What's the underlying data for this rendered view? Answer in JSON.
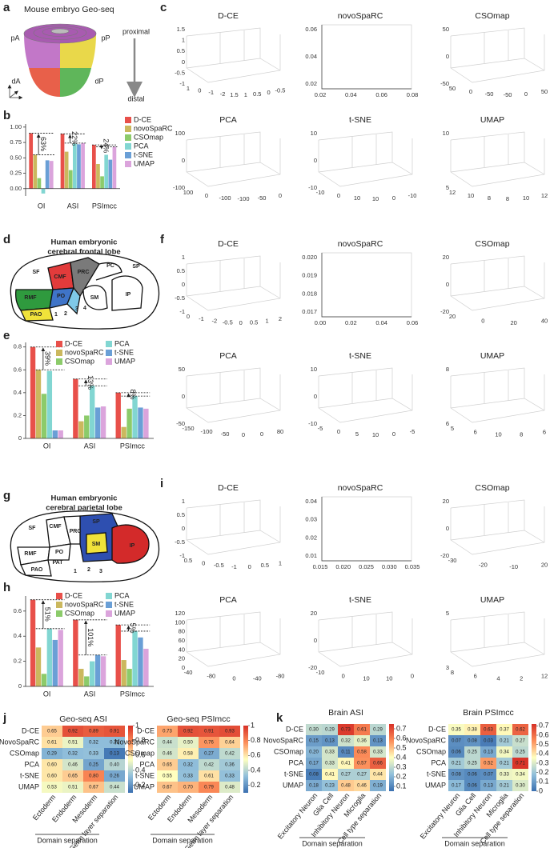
{
  "figure": {
    "panel_labels": [
      "a",
      "b",
      "c",
      "d",
      "e",
      "f",
      "g",
      "h",
      "i",
      "j",
      "k"
    ],
    "a": {
      "title": "Mouse embryo Geo-seq",
      "regions": [
        "pA",
        "pP",
        "dA",
        "dP"
      ],
      "proximal": "proximal",
      "distal": "distal"
    },
    "d": {
      "title_lines": [
        "Human embryonic",
        "cerebral frontal lobe"
      ],
      "regions": [
        "SF",
        "CMF",
        "PRC",
        "PC",
        "SP",
        "SM",
        "IP",
        "RMF",
        "PO",
        "PAO"
      ],
      "markers": [
        "1",
        "2",
        "3",
        "4"
      ]
    },
    "g": {
      "title_lines": [
        "Human embryonic",
        "cerebral parietal lobe"
      ],
      "regions": [
        "SF",
        "CMF",
        "SP",
        "RMF",
        "PRC",
        "PO",
        "PAT",
        "SM",
        "IP",
        "PAO"
      ],
      "markers": [
        "1",
        "2",
        "3"
      ]
    }
  },
  "chart_data": [
    {
      "type": "bar",
      "categories": [
        "OI",
        "ASI",
        "PSImcc"
      ],
      "ylim": [
        -0.12,
        1.05
      ],
      "yticks": [
        {
          "value": 0,
          "label": "0.00"
        },
        {
          "value": 0.25,
          "label": "0.25"
        },
        {
          "value": 0.5,
          "label": "0.50"
        },
        {
          "value": 0.75,
          "label": "0.75"
        },
        {
          "value": 1,
          "label": "1.00"
        }
      ],
      "series": [
        {
          "name": "D-CE",
          "color": "#e8504a",
          "values": [
            0.9,
            0.89,
            0.71
          ]
        },
        {
          "name": "novoSpaRC",
          "color": "#cbb85e",
          "values": [
            0.55,
            0.6,
            0.4
          ]
        },
        {
          "name": "CSOmap",
          "color": "#8ccb6a",
          "values": [
            0.17,
            0.3,
            0.2
          ]
        },
        {
          "name": "PCA",
          "color": "#82d6d2",
          "values": [
            -0.08,
            0.73,
            0.55
          ]
        },
        {
          "name": "t-SNE",
          "color": "#6a9fd6",
          "values": [
            0.46,
            0.72,
            0.47
          ]
        },
        {
          "name": "UMAP",
          "color": "#dba4dc",
          "values": [
            0.45,
            0.74,
            0.68
          ]
        }
      ],
      "annotations": [
        "63%",
        "22%",
        "24%"
      ],
      "legend": "right"
    },
    {
      "type": "bar",
      "categories": [
        "OI",
        "ASI",
        "PSImcc"
      ],
      "ylim": [
        0,
        0.84
      ],
      "yticks": [
        0,
        0.2,
        0.4,
        0.6,
        0.8
      ],
      "series": [
        {
          "name": "D-CE",
          "color": "#e8504a",
          "values": [
            0.8,
            0.52,
            0.4
          ]
        },
        {
          "name": "novoSpaRC",
          "color": "#cbb85e",
          "values": [
            0.6,
            0.15,
            0.1
          ]
        },
        {
          "name": "CSOmap",
          "color": "#8ccb6a",
          "values": [
            0.39,
            0.2,
            0.26
          ]
        },
        {
          "name": "PCA",
          "color": "#82d6d2",
          "values": [
            0.59,
            0.46,
            0.37
          ]
        },
        {
          "name": "t-SNE",
          "color": "#6a9fd6",
          "values": [
            0.07,
            0.27,
            0.27
          ]
        },
        {
          "name": "UMAP",
          "color": "#dba4dc",
          "values": [
            0.07,
            0.28,
            0.26
          ]
        }
      ],
      "annotations": [
        "39%",
        "13%",
        "8%"
      ],
      "legend": "top"
    },
    {
      "type": "bar",
      "categories": [
        "OI",
        "ASI",
        "PSImcc"
      ],
      "ylim": [
        0,
        0.72
      ],
      "yticks": [
        0,
        0.2,
        0.4,
        0.6
      ],
      "series": [
        {
          "name": "D-CE",
          "color": "#e8504a",
          "values": [
            0.69,
            0.53,
            0.49
          ]
        },
        {
          "name": "novoSpaRC",
          "color": "#cbb85e",
          "values": [
            0.31,
            0.14,
            0.21
          ]
        },
        {
          "name": "CSOmap",
          "color": "#8ccb6a",
          "values": [
            0.1,
            0.08,
            0.14
          ]
        },
        {
          "name": "PCA",
          "color": "#82d6d2",
          "values": [
            0.46,
            0.2,
            0.44
          ]
        },
        {
          "name": "t-SNE",
          "color": "#6a9fd6",
          "values": [
            0.37,
            0.25,
            0.39
          ]
        },
        {
          "name": "UMAP",
          "color": "#dba4dc",
          "values": [
            0.45,
            0.24,
            0.3
          ]
        }
      ],
      "annotations": [
        "51%",
        "101%",
        "5%"
      ],
      "legend": "top"
    },
    {
      "type": "scatter3d",
      "title": "D-CE",
      "left_ticks": [
        "1.5",
        "1",
        "0.5",
        "0",
        "-0.5",
        "-1"
      ],
      "bottom_ticks": [
        "1",
        "0",
        "-1",
        "-2",
        "1.5",
        "1",
        "0.5",
        "0",
        "-0.5"
      ]
    },
    {
      "type": "scatter2d",
      "title": "novoSpaRC",
      "left_ticks": [
        "0.06",
        "0.04",
        "0.02"
      ],
      "bottom_ticks": [
        "0.02",
        "0.04",
        "0.06",
        "0.08"
      ]
    },
    {
      "type": "scatter3d",
      "title": "CSOmap",
      "left_ticks": [
        "50",
        "0",
        "-50"
      ],
      "bottom_ticks": [
        "50",
        "0",
        "-50",
        "-50",
        "0",
        "50"
      ]
    },
    {
      "type": "scatter3d",
      "title": "PCA",
      "left_ticks": [
        "100",
        "0",
        "-100"
      ],
      "bottom_ticks": [
        "100",
        "0",
        "-100",
        "-100",
        "-50",
        "0"
      ]
    },
    {
      "type": "scatter3d",
      "title": "t-SNE",
      "left_ticks": [
        "10",
        "0",
        "-10"
      ],
      "bottom_ticks": [
        "-10",
        "0",
        "10",
        "10",
        "0",
        "-10"
      ]
    },
    {
      "type": "scatter3d",
      "title": "UMAP",
      "left_ticks": [
        "10",
        "5"
      ],
      "bottom_ticks": [
        "12",
        "10",
        "8",
        "8",
        "10",
        "12"
      ]
    },
    {
      "type": "scatter3d",
      "title": "D-CE",
      "left_ticks": [
        "1",
        "0.5",
        "0",
        "-0.5",
        "-1"
      ],
      "bottom_ticks": [
        "0",
        "-1",
        "-2",
        "-0.5",
        "0",
        "0.5",
        "1",
        "2"
      ]
    },
    {
      "type": "scatter2d",
      "title": "novoSpaRC",
      "left_ticks": [
        "0.020",
        "0.019",
        "0.018",
        "0.017"
      ],
      "bottom_ticks": [
        "0.00",
        "0.02",
        "0.04",
        "0.06"
      ]
    },
    {
      "type": "scatter3d",
      "title": "CSOmap",
      "left_ticks": [
        "20",
        "0",
        "-20"
      ],
      "bottom_ticks": [
        "20",
        "0",
        "20",
        "40"
      ]
    },
    {
      "type": "scatter3d",
      "title": "PCA",
      "left_ticks": [
        "50",
        "0",
        "-50"
      ],
      "bottom_ticks": [
        "-150",
        "-100",
        "-50",
        "0",
        "0",
        "80"
      ]
    },
    {
      "type": "scatter3d",
      "title": "t-SNE",
      "left_ticks": [
        "10",
        "0",
        "-10"
      ],
      "bottom_ticks": [
        "-5",
        "0",
        "5",
        "10",
        "0",
        "-5"
      ]
    },
    {
      "type": "scatter3d",
      "title": "UMAP",
      "left_ticks": [
        "8",
        "6"
      ],
      "bottom_ticks": [
        "5",
        "6",
        "10",
        "8",
        "6"
      ]
    },
    {
      "type": "scatter3d",
      "title": "D-CE",
      "left_ticks": [
        "1",
        "0.5",
        "0",
        "-0.5",
        "-1"
      ],
      "bottom_ticks": [
        "0.5",
        "0",
        "-0.5",
        "-1",
        "0",
        "0.5",
        "1"
      ]
    },
    {
      "type": "scatter2d",
      "title": "novoSpaRC",
      "left_ticks": [
        "0.04",
        "0.03",
        "0.02",
        "0.01"
      ],
      "bottom_ticks": [
        "0.015",
        "0.020",
        "0.025",
        "0.030",
        "0.035"
      ]
    },
    {
      "type": "scatter3d",
      "title": "CSOmap",
      "left_ticks": [
        "20",
        "0",
        "-20"
      ],
      "bottom_ticks": [
        "-30",
        "-20",
        "-10",
        "20"
      ]
    },
    {
      "type": "scatter3d",
      "title": "PCA",
      "left_ticks": [
        "120",
        "100",
        "80",
        "60",
        "40",
        "20",
        "0"
      ],
      "bottom_ticks": [
        "-40",
        "-80",
        "0",
        "-40",
        "-80"
      ]
    },
    {
      "type": "scatter3d",
      "title": "t-SNE",
      "left_ticks": [
        "20",
        "0",
        "-20"
      ],
      "bottom_ticks": [
        "-10",
        "0",
        "10",
        "10",
        "0"
      ]
    },
    {
      "type": "scatter3d",
      "title": "UMAP",
      "left_ticks": [
        "5",
        "3"
      ],
      "bottom_ticks": [
        "8",
        "6",
        "4",
        "2",
        "12"
      ]
    },
    {
      "type": "heatmap",
      "title": "Geo-seq ASI",
      "rows": [
        "D-CE",
        "NovoSpaRC",
        "CSOmap",
        "PCA",
        "t-SNE",
        "UMAP"
      ],
      "columns": [
        "Ectoderm",
        "Endoderm",
        "Mesoderm",
        "Germ layer separation"
      ],
      "values": [
        [
          0.65,
          0.92,
          0.89,
          0.91
        ],
        [
          0.61,
          0.51,
          0.32,
          0.32
        ],
        [
          0.29,
          0.32,
          0.33,
          0.13
        ],
        [
          0.6,
          0.46,
          0.25,
          0.4
        ],
        [
          0.6,
          0.65,
          0.8,
          0.26
        ],
        [
          0.53,
          0.51,
          0.67,
          0.44
        ]
      ],
      "value_labels": [
        [
          "0.65",
          "0.92",
          "0.89",
          "0.91"
        ],
        [
          "0.61",
          "0.51",
          "0.32",
          "0.32"
        ],
        [
          "0.29",
          "0.32",
          "0.33",
          "0.13"
        ],
        [
          "0.60",
          "0.46",
          "0.25",
          "0.40"
        ],
        [
          "0.60",
          "0.65",
          "0.80",
          "0.26"
        ],
        [
          "0.53",
          "0.51",
          "0.67",
          "0.44"
        ]
      ],
      "clim": [
        0.1,
        1
      ],
      "cticks": [
        1,
        0.8,
        0.6,
        0.4,
        0.2
      ],
      "xlabel": "Domain separation"
    },
    {
      "type": "heatmap",
      "title": "Geo-seq PSImcc",
      "rows": [
        "D-CE",
        "NovoSpaRC",
        "CSOmap",
        "PCA",
        "t-SNE",
        "UMAP"
      ],
      "columns": [
        "Ectoderm",
        "Endoderm",
        "Mesoderm",
        "Germ layer separation"
      ],
      "values": [
        [
          0.73,
          0.92,
          0.91,
          0.93
        ],
        [
          0.44,
          0.5,
          0.76,
          0.64
        ],
        [
          0.46,
          0.58,
          0.27,
          0.42
        ],
        [
          0.65,
          0.32,
          0.42,
          0.36
        ],
        [
          0.55,
          0.33,
          0.61,
          0.33
        ],
        [
          0.67,
          0.7,
          0.79,
          0.48
        ]
      ],
      "value_labels": [
        [
          "0.73",
          "0.92",
          "0.91",
          "0.93"
        ],
        [
          "0.44",
          "0.50",
          "0.76",
          "0.64"
        ],
        [
          "0.46",
          "0.58",
          "0.27",
          "0.42"
        ],
        [
          "0.65",
          "0.32",
          "0.42",
          "0.36"
        ],
        [
          "0.55",
          "0.33",
          "0.61",
          "0.33"
        ],
        [
          "0.67",
          "0.70",
          "0.79",
          "0.48"
        ]
      ],
      "clim": [
        0.1,
        1
      ],
      "cticks": [
        1,
        0.8,
        0.6,
        0.4,
        0.2
      ],
      "xlabel": "Domain separation"
    },
    {
      "type": "heatmap",
      "title": "Brain ASI",
      "rows": [
        "D-CE",
        "NovoSpaRC",
        "CSOmap",
        "PCA",
        "t-SNE",
        "UMAP"
      ],
      "columns": [
        "Excitatory Neuron",
        "Glia Cell",
        "Inhibitory Neuron",
        "Microglia",
        "Cell type separation"
      ],
      "values": [
        [
          0.3,
          0.29,
          0.73,
          0.61,
          0.29
        ],
        [
          0.15,
          0.13,
          0.32,
          0.36,
          0.13
        ],
        [
          0.2,
          0.33,
          0.11,
          0.58,
          0.33
        ],
        [
          0.17,
          0.33,
          0.41,
          0.57,
          0.66
        ],
        [
          0.08,
          0.41,
          0.27,
          0.27,
          0.44
        ],
        [
          0.18,
          0.23,
          0.48,
          0.46,
          0.19
        ]
      ],
      "value_labels": [
        [
          "0.30",
          "0.29",
          "0.73",
          "0.61",
          "0.29"
        ],
        [
          "0.15",
          "0.13",
          "0.32",
          "0.36",
          "0.13"
        ],
        [
          "0.20",
          "0.33",
          "0.11",
          "0.58",
          "0.33"
        ],
        [
          "0.17",
          "0.33",
          "0.41",
          "0.57",
          "0.66"
        ],
        [
          "0.08",
          "0.41",
          "0.27",
          "0.27",
          "0.44"
        ],
        [
          "0.18",
          "0.23",
          "0.48",
          "0.46",
          "0.19"
        ]
      ],
      "clim": [
        0.05,
        0.75
      ],
      "cticks": [
        0.7,
        0.6,
        0.5,
        0.4,
        0.3,
        0.2,
        0.1
      ],
      "xlabel": "Domain separation"
    },
    {
      "type": "heatmap",
      "title": "Brain PSImcc",
      "rows": [
        "D-CE",
        "NovoSpaRC",
        "CSOmap",
        "PCA",
        "t-SNE",
        "UMAP"
      ],
      "columns": [
        "Excitatory Neuron",
        "Glia Cell",
        "Inhibitory Neuron",
        "Microglia",
        "Cell type separation"
      ],
      "values": [
        [
          0.35,
          0.38,
          0.63,
          0.37,
          0.62
        ],
        [
          0.07,
          0.08,
          0.03,
          0.21,
          0.27
        ],
        [
          0.06,
          0.25,
          0.13,
          0.34,
          0.25
        ],
        [
          0.21,
          0.25,
          0.52,
          0.21,
          0.71
        ],
        [
          0.08,
          0.06,
          0.07,
          0.33,
          0.34
        ],
        [
          0.17,
          0.06,
          0.13,
          0.21,
          0.3
        ]
      ],
      "value_labels": [
        [
          "0.35",
          "0.38",
          "0.63",
          "0.37",
          "0.62"
        ],
        [
          "0.07",
          "0.08",
          "0.03",
          "0.21",
          "0.27"
        ],
        [
          "0.06",
          "0.25",
          "0.13",
          "0.34",
          "0.25"
        ],
        [
          "0.21",
          "0.25",
          "0.52",
          "0.21",
          "0.71"
        ],
        [
          "0.08",
          "0.06",
          "0.07",
          "0.33",
          "0.34"
        ],
        [
          "0.17",
          "0.06",
          "0.13",
          "0.21",
          "0.30"
        ]
      ],
      "clim": [
        0,
        0.72
      ],
      "cticks": [
        0.7,
        0.6,
        0.5,
        0.4,
        0.3,
        0.2,
        0.1,
        0
      ],
      "xlabel": "Domain separation"
    }
  ]
}
